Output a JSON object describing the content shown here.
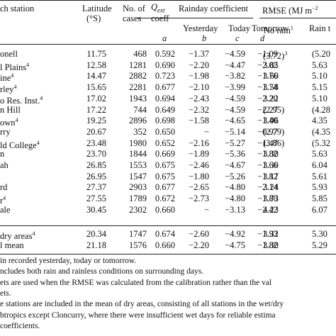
{
  "header": {
    "station": "ch station",
    "latitude": "Latitude",
    "latitude_unit": "(°S)",
    "cases_line1": "No. of",
    "cases_line2": "cases",
    "qext": "Q",
    "qext_sub": "ext",
    "qext_line2": "coeff",
    "rainday": "Rainday coefficient",
    "rmse": "RMSE (MJ m",
    "rmse_sup": "−2",
    "yesterday": "Yesterday",
    "today": "Today",
    "tomorrow": "Tomorrow",
    "norain": "No rain",
    "norain_sup": "1",
    "rain": "Rain t",
    "col_a": "a",
    "col_b": "b",
    "col_c": "c",
    "col_d": "d"
  },
  "rows": [
    {
      "station": "onell",
      "sup": "",
      "lat": "11.75",
      "cases": "468",
      "a": "0.592",
      "b": "−1.37",
      "c": "−4.59",
      "d": "−1.09",
      "norain": "(3.72)",
      "norain_sup": "3",
      "rain": "(5.20"
    },
    {
      "station": "l Plains",
      "sup": "4",
      "lat": "12.58",
      "cases": "1281",
      "a": "0.690",
      "b": "−2.20",
      "c": "−4.47",
      "d": "−2.02",
      "norain": "3.85",
      "norain_sup": "",
      "rain": "5.63"
    },
    {
      "station": "ine",
      "sup": "4",
      "lat": "14.47",
      "cases": "2882",
      "a": "0.723",
      "b": "−1.98",
      "c": "−3.82",
      "d": "−1.76",
      "norain": "3.60",
      "norain_sup": "",
      "rain": "5.10"
    },
    {
      "station": "rley",
      "sup": "4",
      "lat": "15.65",
      "cases": "2281",
      "a": "0.677",
      "b": "−2.10",
      "c": "−3.99",
      "d": "−1.74",
      "norain": "3.58",
      "norain_sup": "",
      "rain": "5.15"
    },
    {
      "station": "o Res. Inst.",
      "sup": "4",
      "lat": "17.02",
      "cases": "1943",
      "a": "0.694",
      "b": "−2.43",
      "c": "−4.59",
      "d": "−2.20",
      "norain": "3.22",
      "norain_sup": "",
      "rain": "5.10"
    },
    {
      "station": "n Hill",
      "sup": "",
      "lat": "17.22",
      "cases": "744",
      "a": "0.649",
      "b": "−2.32",
      "c": "−4.59",
      "d": "−2.27",
      "norain": "(2.95)",
      "norain_sup": "",
      "rain": "(4.28"
    },
    {
      "station": "own",
      "sup": "4",
      "lat": "19.25",
      "cases": "2896",
      "a": "0.698",
      "b": "−1.58",
      "c": "−4.65",
      "d": "−1.40",
      "norain": "3.06",
      "norain_sup": "",
      "rain": "4.35"
    },
    {
      "station": "rry",
      "sup": "",
      "lat": "20.67",
      "cases": "352",
      "a": "0.650",
      "b": "−",
      "c": "−5.14",
      "d": "−0.97",
      "norain": "(2.79)",
      "norain_sup": "",
      "rain": "(4.35"
    },
    {
      "station": "ld College",
      "sup": "4",
      "lat": "23.48",
      "cases": "1980",
      "a": "0.652",
      "b": "−2.16",
      "c": "−5.27",
      "d": "−1.47",
      "norain": "(3.86)",
      "norain_sup": "",
      "rain": "(5.32"
    },
    {
      "station": "n",
      "sup": "",
      "lat": "23.70",
      "cases": "1844",
      "a": "0.669",
      "b": "−1.89",
      "c": "−5.36",
      "d": "−1.82",
      "norain": "3.30",
      "norain_sup": "",
      "rain": "5.63"
    },
    {
      "station": "ah",
      "sup": "",
      "lat": "26.85",
      "cases": "1553",
      "a": "0.675",
      "b": "−2.46",
      "c": "−4.67",
      "d": "−1.66",
      "norain": "3.30",
      "norain_sup": "",
      "rain": "6.04"
    },
    {
      "station": "",
      "sup": "",
      "lat": "26.95",
      "cases": "1547",
      "a": "0.675",
      "b": "−1.80",
      "c": "−5.26",
      "d": "−1.82",
      "norain": "3.17",
      "norain_sup": "",
      "rain": "5.61"
    },
    {
      "station": "rd",
      "sup": "",
      "lat": "27.37",
      "cases": "2903",
      "a": "0.677",
      "b": "−2.65",
      "c": "−4.80",
      "d": "−2.14",
      "norain": "3.24",
      "norain_sup": "",
      "rain": "5.93"
    },
    {
      "station": "r",
      "sup": "4",
      "lat": "27.55",
      "cases": "1789",
      "a": "0.672",
      "b": "−2.73",
      "c": "−4.80",
      "d": "−1.80",
      "norain": "3.73",
      "norain_sup": "",
      "rain": "5.85"
    },
    {
      "station": "ale",
      "sup": "",
      "lat": "30.45",
      "cases": "2302",
      "a": "0.660",
      "b": "−",
      "c": "−3.13",
      "d": "−2.42",
      "norain": "4.23",
      "norain_sup": "",
      "rain": "6.07"
    }
  ],
  "summary": [
    {
      "station": "dry areas",
      "sup": "4",
      "lat": "20.34",
      "cases": "1747",
      "a": "0.674",
      "b": "−2.60",
      "c": "−4.92",
      "d": "−1.93",
      "norain": "3.32",
      "norain_sup": "",
      "rain": "5.30"
    },
    {
      "station": "l mean",
      "sup": "",
      "lat": "21.18",
      "cases": "1576",
      "a": "0.660",
      "b": "−2.20",
      "c": "−4.75",
      "d": "−1.82",
      "norain": "3.30",
      "norain_sup": "",
      "rain": "5.29"
    }
  ],
  "footnotes": [
    "in recorded yesterday, today or tomorrow.",
    "ncludes both rain and rainless conditions on surrounding days.",
    "ets are used when the RMSE was calculated from the calibration rather than the val",
    "ets.",
    "e stations are included in the mean of dry areas, consisting of all stations in the wet/dry",
    "btropics except Cloncurry, where there were insufficient wet days for reliable estima",
    "coefficients."
  ],
  "footnote_marks": [
    "",
    "",
    "",
    "",
    "",
    "",
    ""
  ]
}
